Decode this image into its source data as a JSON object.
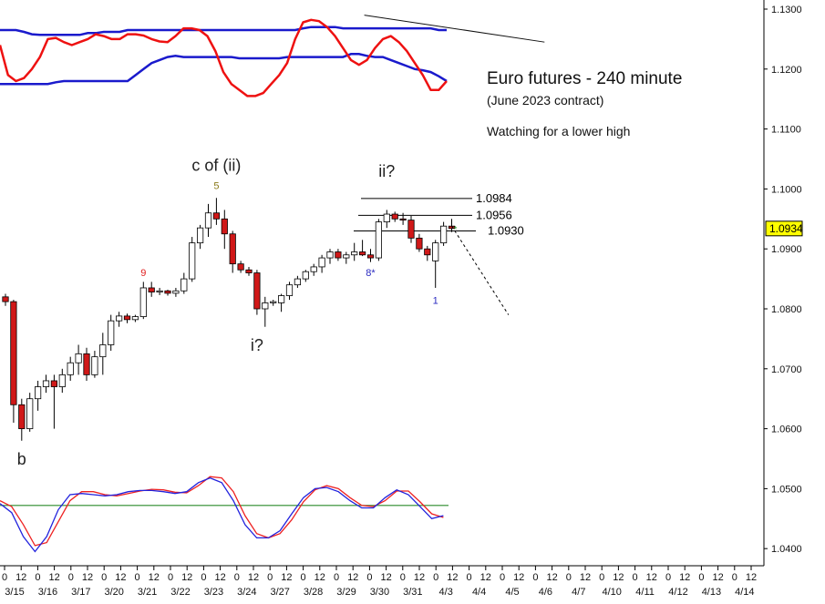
{
  "chart_data": {
    "type": "candlestick",
    "title": "Euro futures - 240 minute",
    "subtitle": "(June 2023 contract)",
    "note": "Watching for a lower high",
    "ylim": [
      1.036,
      1.132
    ],
    "y_ticks": [
      "1.1300",
      "1.1200",
      "1.1100",
      "1.1000",
      "1.0900",
      "1.0800",
      "1.0700",
      "1.0600",
      "1.0500",
      "1.0400"
    ],
    "last_price": "1.0934",
    "x_ticks": [
      {
        "hour": "0",
        "date": "3/15"
      },
      {
        "hour": "12",
        "date": ""
      },
      {
        "hour": "0",
        "date": "3/16"
      },
      {
        "hour": "12",
        "date": ""
      },
      {
        "hour": "0",
        "date": "3/17"
      },
      {
        "hour": "12",
        "date": ""
      },
      {
        "hour": "0",
        "date": "3/20"
      },
      {
        "hour": "12",
        "date": ""
      },
      {
        "hour": "0",
        "date": "3/21"
      },
      {
        "hour": "12",
        "date": ""
      },
      {
        "hour": "0",
        "date": "3/22"
      },
      {
        "hour": "12",
        "date": ""
      },
      {
        "hour": "0",
        "date": "3/23"
      },
      {
        "hour": "12",
        "date": ""
      },
      {
        "hour": "0",
        "date": "3/24"
      },
      {
        "hour": "12",
        "date": ""
      },
      {
        "hour": "0",
        "date": "3/27"
      },
      {
        "hour": "12",
        "date": ""
      },
      {
        "hour": "0",
        "date": "3/28"
      },
      {
        "hour": "12",
        "date": ""
      },
      {
        "hour": "0",
        "date": "3/29"
      },
      {
        "hour": "12",
        "date": ""
      },
      {
        "hour": "0",
        "date": "3/30"
      },
      {
        "hour": "12",
        "date": ""
      },
      {
        "hour": "0",
        "date": "3/31"
      },
      {
        "hour": "12",
        "date": ""
      },
      {
        "hour": "0",
        "date": "4/3"
      },
      {
        "hour": "12",
        "date": ""
      },
      {
        "hour": "0",
        "date": "4/4"
      },
      {
        "hour": "12",
        "date": ""
      },
      {
        "hour": "0",
        "date": "4/5"
      },
      {
        "hour": "12",
        "date": ""
      },
      {
        "hour": "0",
        "date": "4/6"
      },
      {
        "hour": "12",
        "date": ""
      },
      {
        "hour": "0",
        "date": "4/7"
      },
      {
        "hour": "12",
        "date": ""
      },
      {
        "hour": "0",
        "date": "4/10"
      },
      {
        "hour": "12",
        "date": ""
      },
      {
        "hour": "0",
        "date": "4/11"
      },
      {
        "hour": "12",
        "date": ""
      },
      {
        "hour": "0",
        "date": "4/12"
      },
      {
        "hour": "12",
        "date": ""
      },
      {
        "hour": "0",
        "date": "4/13"
      },
      {
        "hour": "12",
        "date": ""
      },
      {
        "hour": "0",
        "date": "4/14"
      },
      {
        "hour": "12",
        "date": ""
      }
    ],
    "candles": [
      [
        1.082,
        1.0825,
        1.0805,
        1.0812
      ],
      [
        1.0812,
        1.0815,
        1.061,
        1.064
      ],
      [
        1.064,
        1.065,
        1.058,
        1.06
      ],
      [
        1.06,
        1.066,
        1.0595,
        1.065
      ],
      [
        1.065,
        1.068,
        1.063,
        1.067
      ],
      [
        1.067,
        1.069,
        1.066,
        1.068
      ],
      [
        1.068,
        1.069,
        1.06,
        1.067
      ],
      [
        1.067,
        1.07,
        1.066,
        1.069
      ],
      [
        1.069,
        1.072,
        1.068,
        1.071
      ],
      [
        1.071,
        1.074,
        1.069,
        1.0725
      ],
      [
        1.0725,
        1.0735,
        1.068,
        1.069
      ],
      [
        1.069,
        1.073,
        1.0685,
        1.072
      ],
      [
        1.072,
        1.076,
        1.069,
        1.074
      ],
      [
        1.074,
        1.079,
        1.073,
        1.078
      ],
      [
        1.078,
        1.0795,
        1.077,
        1.0788
      ],
      [
        1.0788,
        1.0792,
        1.0776,
        1.0782
      ],
      [
        1.0782,
        1.079,
        1.0778,
        1.0787
      ],
      [
        1.0787,
        1.0845,
        1.0783,
        1.0835
      ],
      [
        1.0835,
        1.0845,
        1.082,
        1.0828
      ],
      [
        1.0828,
        1.0835,
        1.0823,
        1.083
      ],
      [
        1.083,
        1.0832,
        1.0822,
        1.0826
      ],
      [
        1.0826,
        1.0835,
        1.082,
        1.083
      ],
      [
        1.083,
        1.086,
        1.0825,
        1.085
      ],
      [
        1.085,
        1.092,
        1.0845,
        1.091
      ],
      [
        1.091,
        1.094,
        1.09,
        1.0935
      ],
      [
        1.0935,
        1.0975,
        1.092,
        1.096
      ],
      [
        1.096,
        1.0985,
        1.094,
        1.095
      ],
      [
        1.095,
        1.0965,
        1.09,
        1.0925
      ],
      [
        1.0925,
        1.093,
        1.086,
        1.0875
      ],
      [
        1.0875,
        1.088,
        1.086,
        1.0865
      ],
      [
        1.0865,
        1.087,
        1.0855,
        1.086
      ],
      [
        1.086,
        1.0865,
        1.079,
        1.08
      ],
      [
        1.08,
        1.082,
        1.077,
        1.081
      ],
      [
        1.081,
        1.0815,
        1.0805,
        1.0812
      ],
      [
        1.081,
        1.0825,
        1.0795,
        1.0822
      ],
      [
        1.0822,
        1.0845,
        1.0815,
        1.084
      ],
      [
        1.084,
        1.0855,
        1.0835,
        1.085
      ],
      [
        1.085,
        1.0865,
        1.0845,
        1.0862
      ],
      [
        1.0862,
        1.0875,
        1.0855,
        1.087
      ],
      [
        1.087,
        1.089,
        1.086,
        1.0885
      ],
      [
        1.0885,
        1.09,
        1.0875,
        1.0895
      ],
      [
        1.0895,
        1.09,
        1.088,
        1.0885
      ],
      [
        1.0885,
        1.0895,
        1.0875,
        1.089
      ],
      [
        1.089,
        1.091,
        1.088,
        1.0895
      ],
      [
        1.0895,
        1.0915,
        1.0888,
        1.089
      ],
      [
        1.089,
        1.09,
        1.0878,
        1.0885
      ],
      [
        1.0885,
        1.095,
        1.088,
        1.0945
      ],
      [
        1.0945,
        1.0965,
        1.0935,
        1.0958
      ],
      [
        1.0958,
        1.0962,
        1.0945,
        1.095
      ],
      [
        1.095,
        1.096,
        1.094,
        1.0948
      ],
      [
        1.0948,
        1.0955,
        1.091,
        1.0918
      ],
      [
        1.0918,
        1.0925,
        1.0895,
        1.09
      ],
      [
        1.09,
        1.0905,
        1.088,
        1.089
      ],
      [
        1.088,
        1.0915,
        1.0835,
        1.091
      ],
      [
        1.091,
        1.0945,
        1.0905,
        1.0938
      ],
      [
        1.0938,
        1.095,
        1.0928,
        1.0934
      ]
    ],
    "levels": [
      {
        "value": 1.0984,
        "label": "1.0984"
      },
      {
        "value": 1.0956,
        "label": "1.0956"
      },
      {
        "value": 1.093,
        "label": "1.0930"
      }
    ],
    "wave_labels": [
      {
        "text": "b",
        "candle": 2,
        "price": 1.054,
        "size": 18,
        "color": "#222222"
      },
      {
        "text": "c of (ii)",
        "candle": 26,
        "price": 1.103,
        "size": 18,
        "color": "#222222"
      },
      {
        "text": "i?",
        "candle": 31,
        "price": 1.073,
        "size": 18,
        "color": "#222222"
      },
      {
        "text": "ii?",
        "candle": 47,
        "price": 1.102,
        "size": 18,
        "color": "#222222"
      },
      {
        "text": "5",
        "candle": 26,
        "price": 1.1,
        "size": 11,
        "color": "#8a7a1a"
      },
      {
        "text": "9",
        "candle": 17,
        "price": 1.0855,
        "size": 11,
        "color": "#e02020"
      },
      {
        "text": "8*",
        "candle": 45,
        "price": 1.0855,
        "size": 11,
        "color": "#2a2ac0"
      },
      {
        "text": "1",
        "candle": 53,
        "price": 1.0808,
        "size": 11,
        "color": "#2a2ac0"
      }
    ],
    "projection": [
      [
        55,
        1.0938
      ],
      [
        62,
        1.079
      ]
    ],
    "cycle_red": [
      1.124,
      1.119,
      1.118,
      1.1185,
      1.12,
      1.122,
      1.125,
      1.1252,
      1.1245,
      1.124,
      1.1245,
      1.125,
      1.1258,
      1.1255,
      1.125,
      1.125,
      1.1258,
      1.1258,
      1.1256,
      1.125,
      1.1246,
      1.1245,
      1.1255,
      1.1268,
      1.1268,
      1.1265,
      1.1255,
      1.123,
      1.1195,
      1.1175,
      1.1165,
      1.1155,
      1.1155,
      1.116,
      1.1175,
      1.119,
      1.121,
      1.125,
      1.1278,
      1.1282,
      1.128,
      1.127,
      1.1255,
      1.1235,
      1.1215,
      1.1207,
      1.1215,
      1.1235,
      1.125,
      1.1255,
      1.1245,
      1.123,
      1.121,
      1.119,
      1.1165,
      1.1165,
      1.118
    ],
    "band_upper": [
      1.1265,
      1.1265,
      1.1265,
      1.1262,
      1.1258,
      1.1257,
      1.1257,
      1.1257,
      1.1257,
      1.1257,
      1.1257,
      1.126,
      1.126,
      1.1262,
      1.1262,
      1.1262,
      1.1265,
      1.1265,
      1.1265,
      1.1265,
      1.1265,
      1.1265,
      1.1265,
      1.1265,
      1.1265,
      1.1265,
      1.1265,
      1.1265,
      1.1265,
      1.1265,
      1.1265,
      1.1265,
      1.1265,
      1.1265,
      1.1265,
      1.1265,
      1.1265,
      1.1265,
      1.1268,
      1.127,
      1.127,
      1.127,
      1.127,
      1.1268,
      1.1268,
      1.1268,
      1.1268,
      1.1268,
      1.1268,
      1.1268,
      1.1268,
      1.1268,
      1.1268,
      1.1268,
      1.1268,
      1.1265,
      1.1265
    ],
    "band_lower": [
      1.1175,
      1.1175,
      1.1175,
      1.1175,
      1.1175,
      1.1175,
      1.1175,
      1.1178,
      1.118,
      1.118,
      1.118,
      1.118,
      1.118,
      1.118,
      1.118,
      1.118,
      1.118,
      1.119,
      1.12,
      1.121,
      1.1215,
      1.122,
      1.1222,
      1.122,
      1.122,
      1.122,
      1.122,
      1.122,
      1.122,
      1.122,
      1.1218,
      1.1218,
      1.1218,
      1.1218,
      1.1218,
      1.1218,
      1.122,
      1.122,
      1.122,
      1.122,
      1.122,
      1.122,
      1.122,
      1.122,
      1.1225,
      1.1225,
      1.1222,
      1.122,
      1.122,
      1.1215,
      1.121,
      1.1205,
      1.12,
      1.1198,
      1.1195,
      1.1188,
      1.118
    ],
    "trend_line": [
      [
        44,
        1.129
      ],
      [
        67,
        1.1245
      ]
    ],
    "stoch_blue": [
      1.0475,
      1.046,
      1.042,
      1.0395,
      1.042,
      1.0465,
      1.049,
      1.0492,
      1.049,
      1.0488,
      1.049,
      1.0495,
      1.0497,
      1.0497,
      1.0495,
      1.0492,
      1.0495,
      1.051,
      1.0518,
      1.051,
      1.048,
      1.044,
      1.0418,
      1.0418,
      1.043,
      1.0458,
      1.0485,
      1.05,
      1.0502,
      1.0495,
      1.048,
      1.0468,
      1.0468,
      1.0485,
      1.0498,
      1.049,
      1.047,
      1.045,
      1.0455
    ],
    "stoch_red": [
      1.048,
      1.047,
      1.044,
      1.0405,
      1.041,
      1.0445,
      1.048,
      1.0495,
      1.0495,
      1.049,
      1.0488,
      1.0492,
      1.0496,
      1.0499,
      1.0498,
      1.0494,
      1.0493,
      1.0505,
      1.052,
      1.0518,
      1.0495,
      1.0455,
      1.0425,
      1.0418,
      1.0425,
      1.0448,
      1.0478,
      1.0498,
      1.0505,
      1.05,
      1.0485,
      1.0472,
      1.047,
      1.048,
      1.0496,
      1.0496,
      1.0478,
      1.0458,
      1.0452
    ],
    "stoch_signal": 1.0472
  },
  "colors": {
    "up_candle": "#ffffff",
    "down_candle": "#d01818",
    "cycle": "#ee1111",
    "band": "#1a1acc",
    "stoch_signal": "#2a8a2a",
    "stoch_blue": "#2222dd",
    "stoch_red": "#ee2222",
    "price_tag": "#ffff00"
  }
}
